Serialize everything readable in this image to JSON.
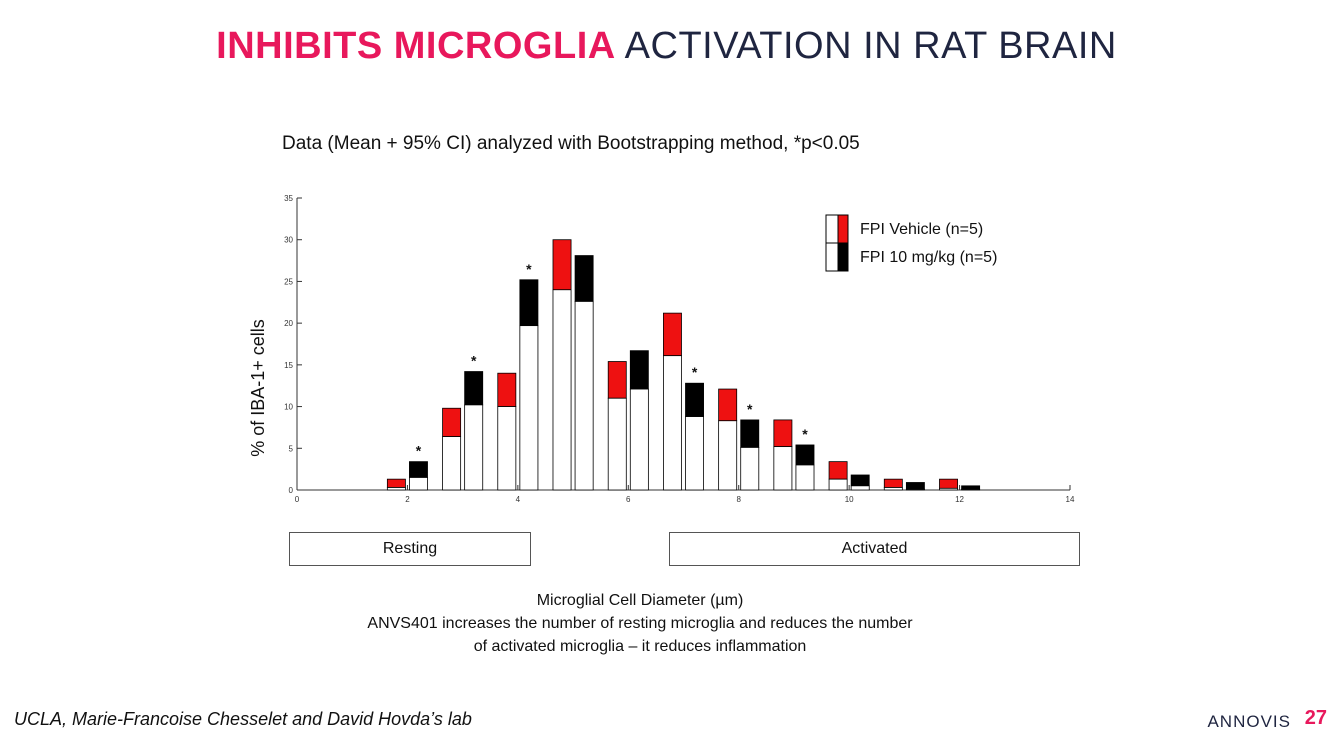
{
  "slide": {
    "title_highlight": "INHIBITS MICROGLIA",
    "title_rest": " ACTIVATION IN RAT BRAIN",
    "subtitle": "Data (Mean + 95% CI) analyzed with Bootstrapping method, *p<0.05",
    "range_resting": "Resting",
    "range_activated": "Activated",
    "caption_line1": "Microglial Cell Diameter (µm)",
    "caption_line2": "ANVS401 increases the number of resting microglia and reduces the number",
    "caption_line3": "of activated microglia – it reduces inflammation",
    "credit": "UCLA, Marie-Francoise Chesselet and David Hovda’s lab",
    "logo": "ANNOVIS",
    "page_number": "27"
  },
  "chart_data": {
    "type": "bar",
    "ylabel": "% of IBA-1+ cells",
    "xlim": [
      0,
      14
    ],
    "ylim": [
      0,
      35
    ],
    "xticks": [
      0,
      2,
      4,
      6,
      8,
      10,
      12,
      14
    ],
    "yticks": [
      0,
      5,
      10,
      15,
      20,
      25,
      30,
      35
    ],
    "significance_marker": "*",
    "colors": {
      "vehicle": "#ee1111",
      "treated": "#000000",
      "mean_fill": "#ffffff"
    },
    "series": [
      {
        "name": "FPI Vehicle (n=5)",
        "color": "#ee1111",
        "x": [
          1.8,
          2.8,
          3.8,
          4.8,
          5.8,
          6.8,
          7.8,
          8.8,
          9.8,
          10.8,
          11.8
        ],
        "mean": [
          0.3,
          6.4,
          10.0,
          24.0,
          11.0,
          16.1,
          8.3,
          5.2,
          1.3,
          0.3,
          0.2
        ],
        "upper": [
          1.3,
          9.8,
          14.0,
          30.0,
          15.4,
          21.2,
          12.1,
          8.4,
          3.4,
          1.3,
          1.3
        ]
      },
      {
        "name": "FPI 10 mg/kg (n=5)",
        "color": "#000000",
        "x": [
          2.2,
          3.2,
          4.2,
          5.2,
          6.2,
          7.2,
          8.2,
          9.2,
          10.2,
          11.2,
          12.2
        ],
        "mean": [
          1.5,
          10.2,
          19.7,
          22.6,
          12.1,
          8.8,
          5.1,
          3.0,
          0.5,
          0.1,
          0.1
        ],
        "upper": [
          3.4,
          14.2,
          25.2,
          28.1,
          16.7,
          12.8,
          8.4,
          5.4,
          1.8,
          0.9,
          0.5
        ],
        "significant": [
          true,
          true,
          true,
          false,
          false,
          true,
          true,
          true,
          false,
          false,
          false
        ]
      }
    ],
    "ranges": [
      {
        "label": "Resting",
        "from": -0.2,
        "to": 4.2
      },
      {
        "label": "Activated",
        "from": 6.7,
        "to": 14.2
      }
    ]
  }
}
